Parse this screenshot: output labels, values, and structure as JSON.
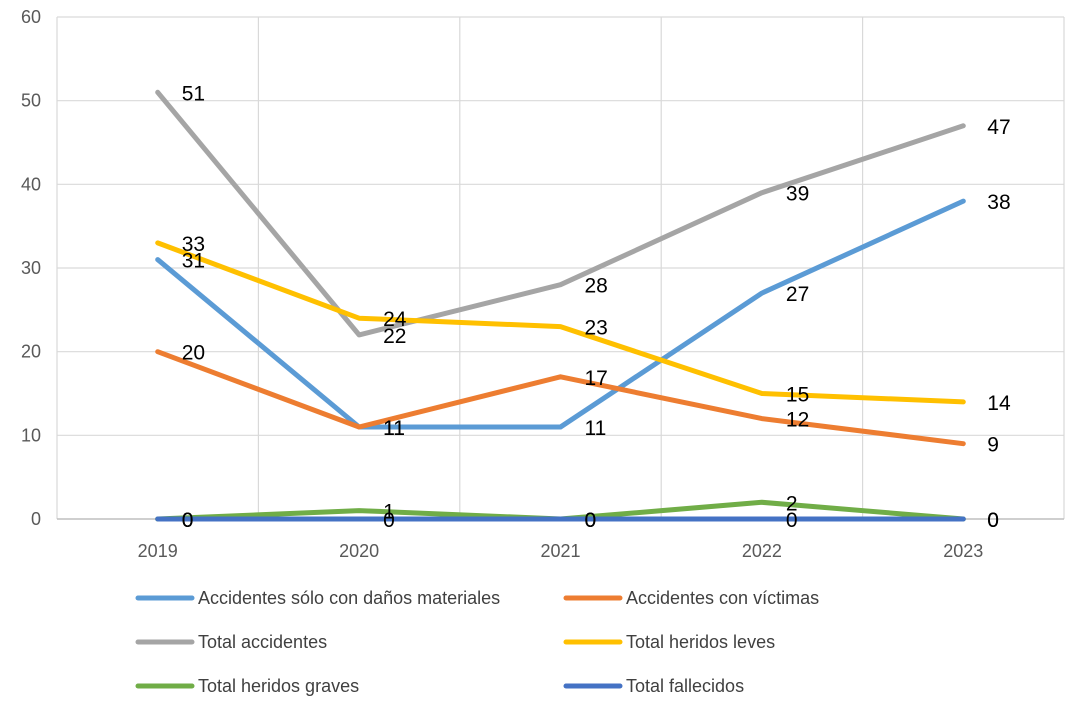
{
  "chart_data": {
    "type": "line",
    "title": "",
    "xlabel": "",
    "ylabel": "",
    "categories": [
      "2019",
      "2020",
      "2021",
      "2022",
      "2023"
    ],
    "ylim": [
      0,
      60
    ],
    "yticks": [
      "0",
      "10",
      "20",
      "30",
      "40",
      "50",
      "60"
    ],
    "grid": true,
    "legend_position": "bottom",
    "series": [
      {
        "name": "Accidentes sólo con daños materiales",
        "color": "#5B9BD5",
        "values": [
          31,
          11,
          11,
          27,
          38
        ]
      },
      {
        "name": "Accidentes con víctimas",
        "color": "#ED7D31",
        "values": [
          20,
          11,
          17,
          12,
          9
        ]
      },
      {
        "name": "Total accidentes",
        "color": "#A5A5A5",
        "values": [
          51,
          22,
          28,
          39,
          47
        ]
      },
      {
        "name": "Total heridos leves",
        "color": "#FFC000",
        "values": [
          33,
          24,
          23,
          15,
          14
        ]
      },
      {
        "name": "Total heridos graves",
        "color": "#70AD47",
        "values": [
          0,
          1,
          0,
          2,
          0
        ]
      },
      {
        "name": "Total fallecidos",
        "color": "#4472C4",
        "values": [
          0,
          0,
          0,
          0,
          0
        ]
      }
    ]
  }
}
